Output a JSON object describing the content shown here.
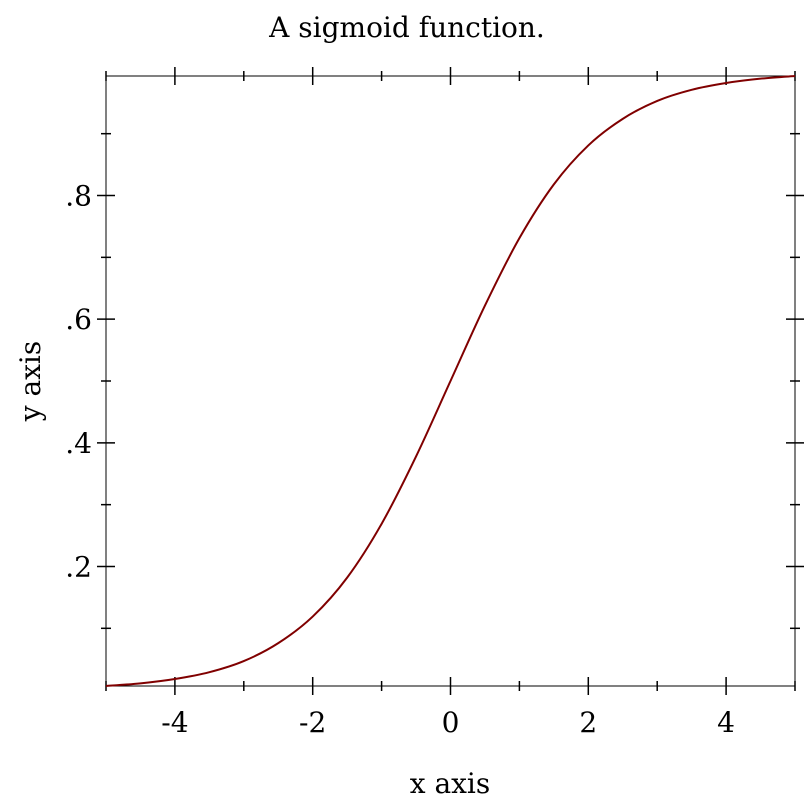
{
  "chart_data": {
    "type": "line",
    "title": "A sigmoid function.",
    "xlabel": "x axis",
    "ylabel": "y axis",
    "xlim": [
      -5,
      5
    ],
    "ylim": [
      0.0067,
      0.9933
    ],
    "x_ticks": [
      -4,
      -2,
      0,
      2,
      4
    ],
    "x_tick_labels": [
      "-4",
      "-2",
      "0",
      "2",
      "4"
    ],
    "y_ticks": [
      0.2,
      0.4,
      0.6,
      0.8
    ],
    "y_tick_labels": [
      ".2",
      ".4",
      ".6",
      ".8"
    ],
    "grid": false,
    "series": [
      {
        "color": "#800000",
        "x": [
          -5,
          -4.5,
          -4,
          -3.5,
          -3,
          -2.5,
          -2,
          -1.5,
          -1,
          -0.5,
          0,
          0.5,
          1,
          1.5,
          2,
          2.5,
          3,
          3.5,
          4,
          4.5,
          5
        ],
        "y": [
          0.0067,
          0.011,
          0.018,
          0.029,
          0.047,
          0.076,
          0.119,
          0.182,
          0.269,
          0.378,
          0.5,
          0.622,
          0.731,
          0.818,
          0.881,
          0.924,
          0.953,
          0.971,
          0.982,
          0.989,
          0.9933
        ]
      }
    ]
  }
}
